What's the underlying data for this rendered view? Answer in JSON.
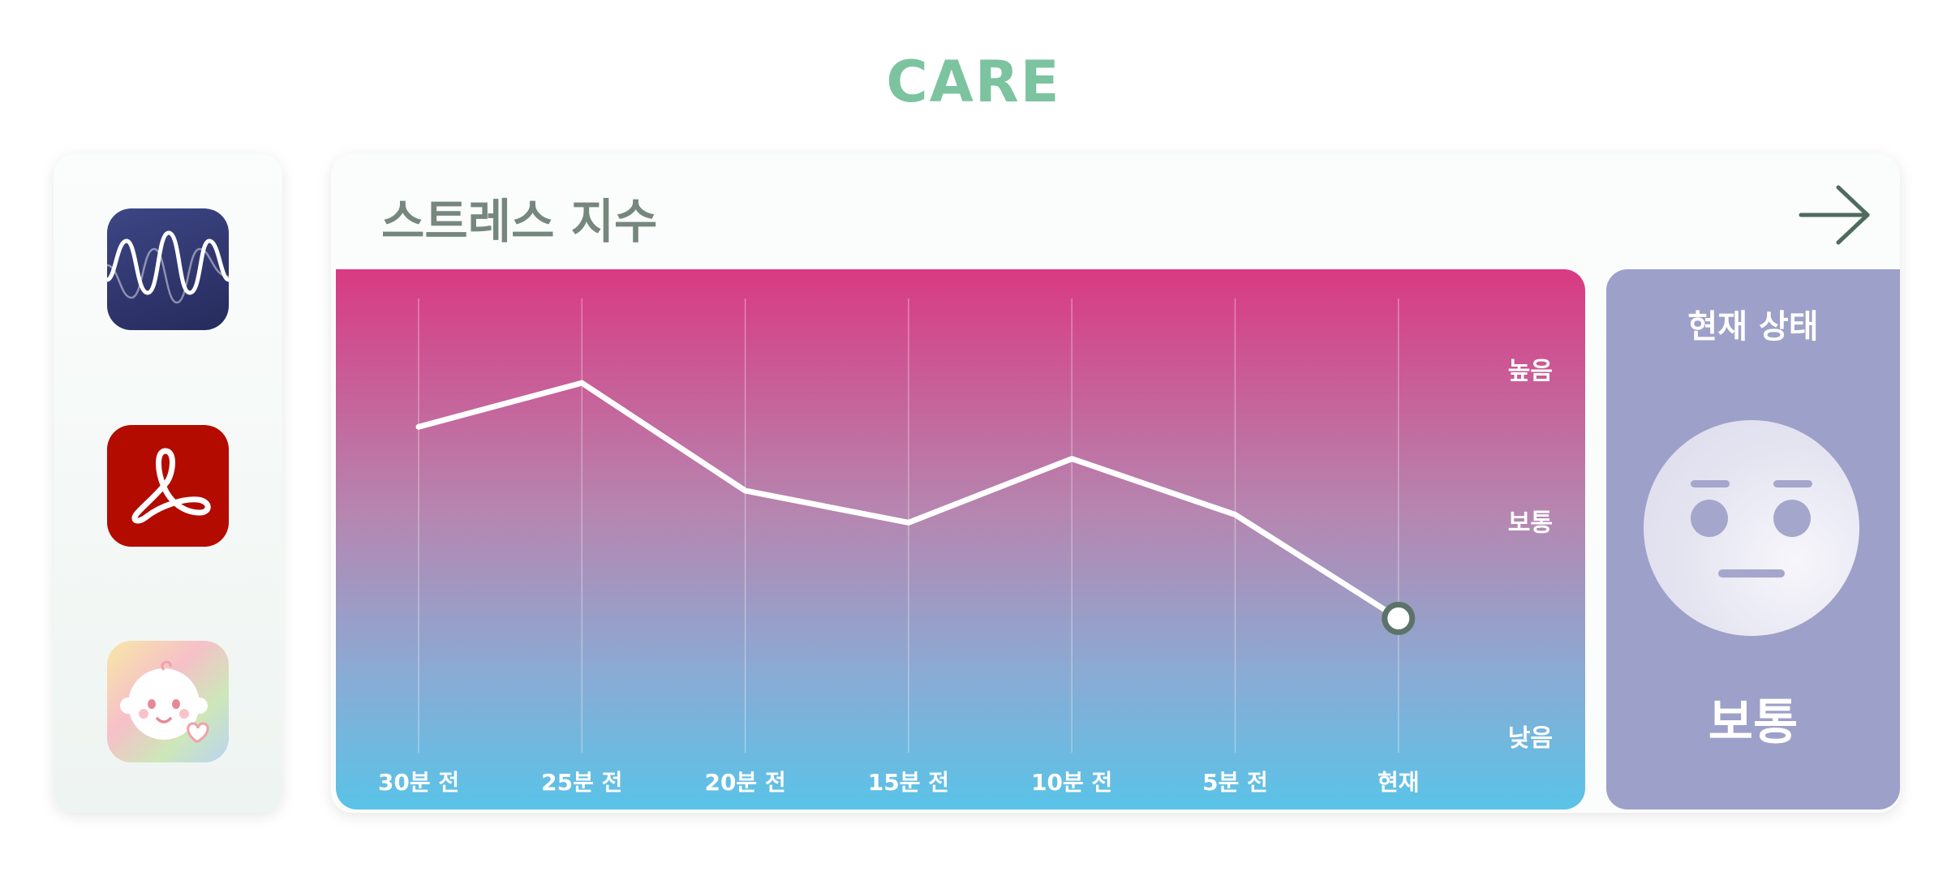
{
  "brand": {
    "title": "CARE"
  },
  "dock": {
    "apps": [
      {
        "name": "waveform-app"
      },
      {
        "name": "acrobat-app"
      },
      {
        "name": "baby-care-app"
      }
    ]
  },
  "stress_card": {
    "title": "스트레스 지수",
    "status": {
      "title": "현재 상태",
      "value": "보통",
      "face": "neutral-face-icon"
    }
  },
  "chart_data": {
    "type": "line",
    "categories": [
      "30분 전",
      "25분 전",
      "20분 전",
      "15분 전",
      "10분 전",
      "5분 전",
      "현재"
    ],
    "values": [
      78,
      89,
      62,
      54,
      70,
      56,
      30
    ],
    "ylim": [
      0,
      100
    ],
    "y_level_labels": [
      {
        "label": "높음",
        "value": 92
      },
      {
        "label": "보통",
        "value": 54
      },
      {
        "label": "낮음",
        "value": 0
      }
    ],
    "grid": "vertical",
    "highlight_last_point": true,
    "colors": {
      "line": "#ffffff",
      "marker_stroke": "#5b7368",
      "gradient_top": "#d93a82",
      "gradient_bottom": "#5ac3e8"
    }
  }
}
